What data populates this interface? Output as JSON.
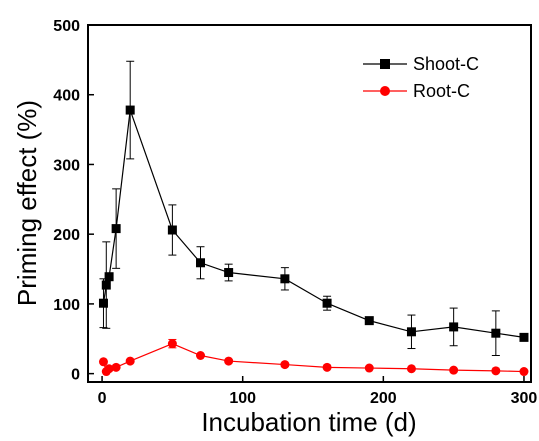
{
  "chart_data": {
    "type": "line",
    "title": "",
    "xlabel": "Incubation time (d)",
    "ylabel": "Priming effect (%)",
    "xlim": [
      -10,
      305
    ],
    "ylim": [
      -12,
      500
    ],
    "xticks": [
      0,
      100,
      200,
      300
    ],
    "yticks": [
      0,
      100,
      200,
      300,
      400,
      500
    ],
    "xtick_labels": [
      "0",
      "100",
      "200",
      "300"
    ],
    "ytick_labels": [
      "0",
      "100",
      "200",
      "300",
      "400",
      "500"
    ],
    "grid": false,
    "legend_position": "top-right",
    "series": [
      {
        "name": "Shoot-C",
        "color": "#000000",
        "marker": "square",
        "x": [
          1,
          3,
          5,
          10,
          20,
          50,
          70,
          90,
          130,
          160,
          190,
          220,
          250,
          280,
          300
        ],
        "y": [
          101,
          127,
          139,
          208,
          378,
          206,
          159,
          145,
          136,
          101,
          76,
          60,
          67,
          58,
          52
        ],
        "err": [
          35,
          62,
          0,
          57,
          70,
          36,
          23,
          12,
          16,
          10,
          0,
          24,
          27,
          32,
          0
        ]
      },
      {
        "name": "Root-C",
        "color": "#ff0000",
        "marker": "circle",
        "x": [
          1,
          3,
          5,
          10,
          20,
          50,
          70,
          90,
          130,
          160,
          190,
          220,
          250,
          280,
          300
        ],
        "y": [
          17,
          3,
          7,
          9,
          18,
          43,
          26,
          18,
          13,
          9,
          8,
          7,
          5,
          4,
          3
        ],
        "err": [
          0,
          0,
          0,
          0,
          0,
          6,
          0,
          0,
          0,
          0,
          0,
          0,
          0,
          0,
          0
        ]
      }
    ]
  }
}
